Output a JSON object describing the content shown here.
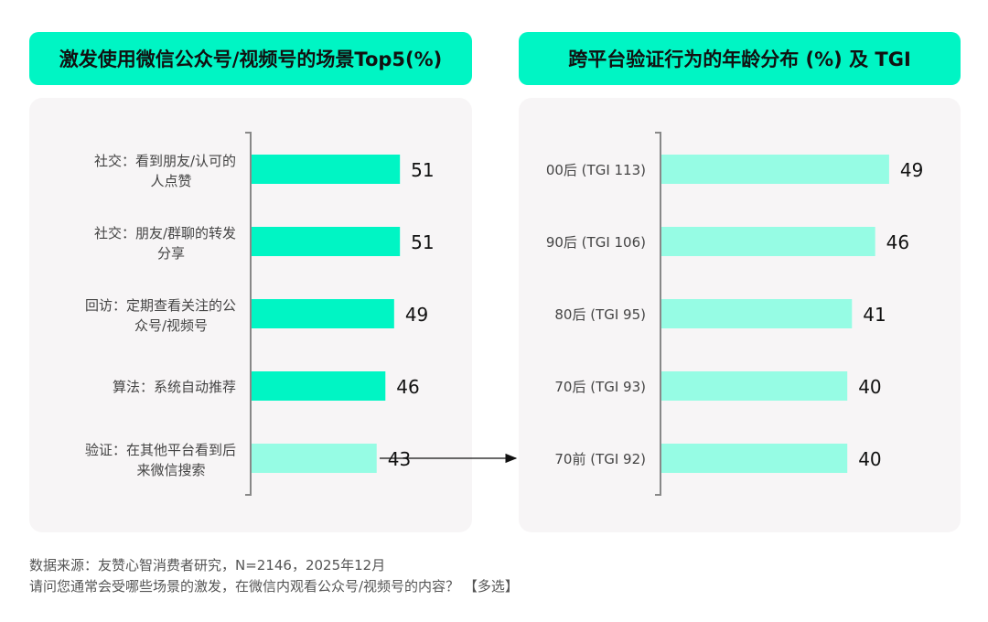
{
  "chart_data": [
    {
      "type": "bar",
      "orientation": "horizontal",
      "title": "激发使用微信公众号/视频号的场景Top5(%)",
      "categories": [
        [
          "社交：看到朋友/认可的",
          "人点赞"
        ],
        [
          "社交：朋友/群聊的转发",
          "分享"
        ],
        [
          "回访：定期查看关注的公",
          "众号/视频号"
        ],
        [
          "算法：系统自动推荐"
        ],
        [
          "验证：在其他平台看到后",
          "来微信搜索"
        ]
      ],
      "values": [
        51,
        51,
        49,
        46,
        43
      ],
      "colors": [
        "#00F5C4",
        "#00F5C4",
        "#00F5C4",
        "#00F5C4",
        "#96FCE4"
      ]
    },
    {
      "type": "bar",
      "orientation": "horizontal",
      "title": "跨平台验证行为的年龄分布 (%) 及 TGI",
      "categories": [
        [
          "00后 (TGI 113)"
        ],
        [
          "90后 (TGI 106)"
        ],
        [
          "80后 (TGI 95)"
        ],
        [
          "70后 (TGI 93)"
        ],
        [
          "70前 (TGI 92)"
        ]
      ],
      "values": [
        49,
        46,
        41,
        40,
        40
      ],
      "colors": [
        "#96FCE4",
        "#96FCE4",
        "#96FCE4",
        "#96FCE4",
        "#96FCE4"
      ]
    }
  ],
  "footer": {
    "source": "数据来源：友赞心智消费者研究，N=2146，2025年12月",
    "question": "请问您通常会受哪些场景的激发，在微信内观看公众号/视频号的内容？ 【多选】"
  }
}
